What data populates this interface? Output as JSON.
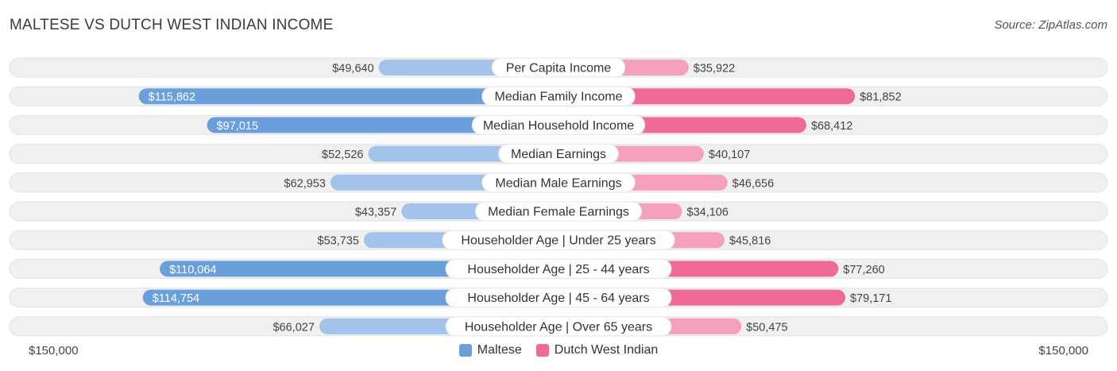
{
  "title": "MALTESE VS DUTCH WEST INDIAN INCOME",
  "source": "Source: ZipAtlas.com",
  "colors": {
    "left_strong": "#6a9fdc",
    "left_light": "#a4c3eb",
    "right_strong": "#ef6b96",
    "right_light": "#f5a0bd",
    "track": "#f0f0f0"
  },
  "chart_data": {
    "type": "bar",
    "orientation": "horizontal-diverging",
    "title": "MALTESE VS DUTCH WEST INDIAN INCOME",
    "xlim": [
      0,
      150000
    ],
    "axis_left_label": "$150,000",
    "axis_right_label": "$150,000",
    "categories": [
      "Per Capita Income",
      "Median Family Income",
      "Median Household Income",
      "Median Earnings",
      "Median Male Earnings",
      "Median Female Earnings",
      "Householder Age | Under 25 years",
      "Householder Age | 25 - 44 years",
      "Householder Age | 45 - 64 years",
      "Householder Age | Over 65 years"
    ],
    "series": [
      {
        "name": "Maltese",
        "side": "left",
        "values": [
          49640,
          115862,
          97015,
          52526,
          62953,
          43357,
          53735,
          110064,
          114754,
          66027
        ],
        "labels": [
          "$49,640",
          "$115,862",
          "$97,015",
          "$52,526",
          "$62,953",
          "$43,357",
          "$53,735",
          "$110,064",
          "$114,754",
          "$66,027"
        ]
      },
      {
        "name": "Dutch West Indian",
        "side": "right",
        "values": [
          35922,
          81852,
          68412,
          40107,
          46656,
          34106,
          45816,
          77260,
          79171,
          50475
        ],
        "labels": [
          "$35,922",
          "$81,852",
          "$68,412",
          "$40,107",
          "$46,656",
          "$34,106",
          "$45,816",
          "$77,260",
          "$79,171",
          "$50,475"
        ]
      }
    ],
    "legend": [
      "Maltese",
      "Dutch West Indian"
    ],
    "legend_position": "bottom-center"
  }
}
